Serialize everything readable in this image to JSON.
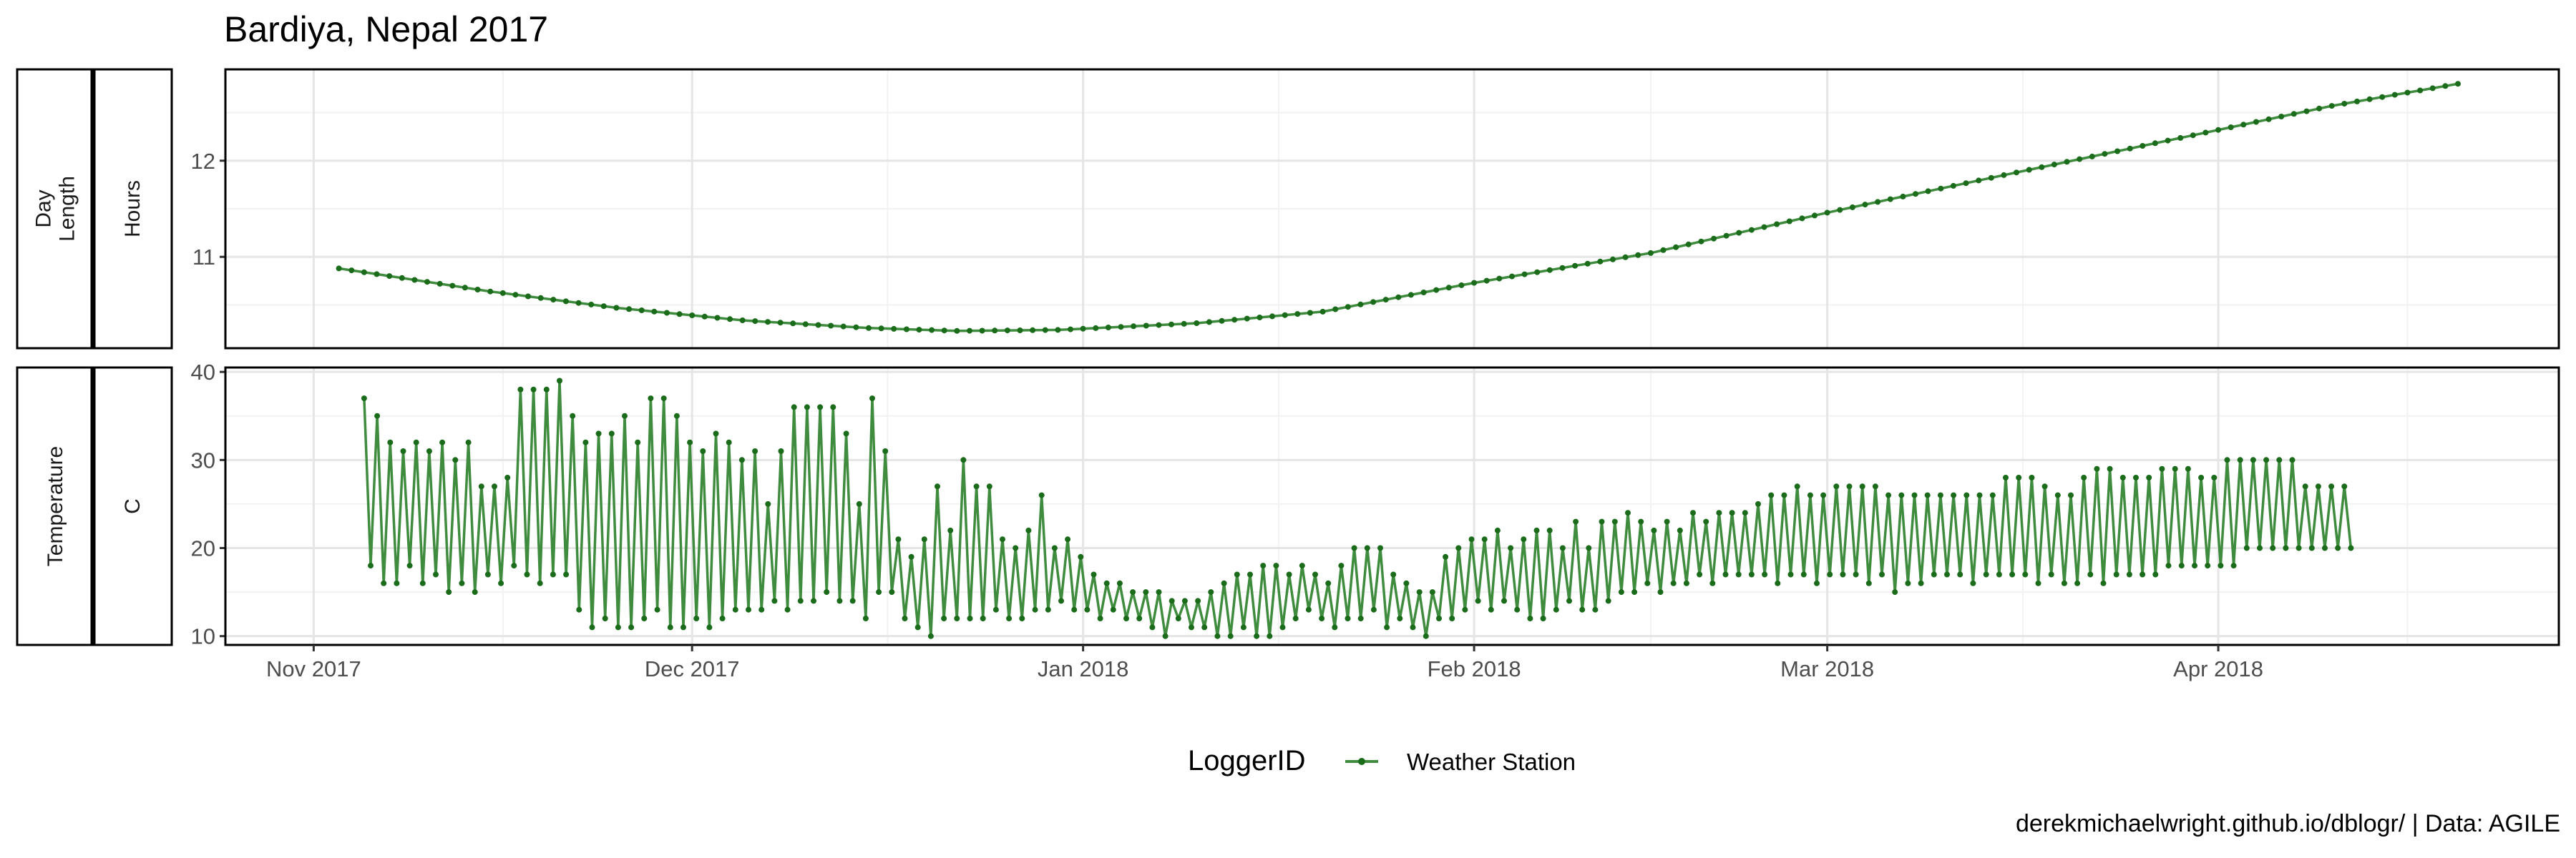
{
  "title": "Bardiya, Nepal 2017",
  "caption": "derekmichaelwright.github.io/dblogr/ | Data: AGILE",
  "legend": {
    "title": "LoggerID",
    "entry": "Weather Station",
    "position": "bottom"
  },
  "style": {
    "line_color": "#3f8c3f",
    "point_color": "#1a6b1a",
    "grid_major": "#e5e5e5",
    "grid_minor": "#f2f2f2",
    "panel_border": "#000000",
    "strip_fill": "#ffffff",
    "tick_text": "#4d4d4d"
  },
  "x_axis": {
    "ticks": [
      "2017-11-01",
      "2017-12-01",
      "2018-01-01",
      "2018-02-01",
      "2018-03-01",
      "2018-04-01"
    ],
    "tick_labels": [
      "Nov 2017",
      "Dec 2017",
      "Jan 2018",
      "Feb 2018",
      "Mar 2018",
      "Apr 2018"
    ],
    "range": [
      "2017-10-25",
      "2018-04-28"
    ]
  },
  "chart_data": [
    {
      "type": "line",
      "facet": [
        "Day Length",
        "Hours"
      ],
      "series": [
        {
          "name": "Weather Station",
          "start": "2017-11-03",
          "end": "2018-04-20",
          "step_days": 1,
          "knots": [
            [
              "2017-11-03",
              10.88
            ],
            [
              "2017-11-15",
              10.64
            ],
            [
              "2017-11-25",
              10.47
            ],
            [
              "2017-12-05",
              10.34
            ],
            [
              "2017-12-15",
              10.26
            ],
            [
              "2017-12-22",
              10.23
            ],
            [
              "2017-12-30",
              10.24
            ],
            [
              "2018-01-10",
              10.31
            ],
            [
              "2018-01-20",
              10.43
            ],
            [
              "2018-02-01",
              10.73
            ],
            [
              "2018-02-15",
              11.04
            ],
            [
              "2018-03-01",
              11.46
            ],
            [
              "2018-03-15",
              11.85
            ],
            [
              "2018-04-01",
              12.32
            ],
            [
              "2018-04-10",
              12.57
            ],
            [
              "2018-04-20",
              12.8
            ]
          ]
        }
      ],
      "y_ticks": [
        11,
        12
      ],
      "ylim": [
        10.05,
        12.95
      ],
      "grid": true
    },
    {
      "type": "line",
      "facet": [
        "Temperature",
        "C"
      ],
      "series": [
        {
          "name": "Weather Station",
          "start": "2017-11-05",
          "end": "2018-04-11",
          "pattern": "daily max then min",
          "max_values": [
            37,
            35,
            32,
            31,
            32,
            31,
            32,
            30,
            32,
            27,
            27,
            28,
            38,
            38,
            38,
            39,
            35,
            32,
            33,
            33,
            35,
            32,
            37,
            37,
            35,
            32,
            31,
            33,
            32,
            30,
            31,
            25,
            31,
            36,
            36,
            36,
            36,
            33,
            25,
            37,
            31,
            21,
            19,
            21,
            27,
            22,
            30,
            27,
            27,
            21,
            20,
            22,
            26,
            20,
            21,
            19,
            17,
            16,
            16,
            15,
            15,
            15,
            14,
            14,
            14,
            15,
            16,
            17,
            17,
            18,
            18,
            17,
            18,
            17,
            16,
            18,
            20,
            20,
            20,
            17,
            16,
            15,
            15,
            19,
            20,
            21,
            21,
            22,
            20,
            21,
            22,
            22,
            20,
            23,
            20,
            23,
            23,
            24,
            23,
            22,
            23,
            22,
            24,
            23,
            24,
            24,
            24,
            25,
            26,
            26,
            27,
            26,
            26,
            27,
            27,
            27,
            27,
            26,
            26,
            26,
            26,
            26,
            26,
            26,
            26,
            26,
            28,
            28,
            28,
            27,
            26,
            26,
            28,
            29,
            29,
            28,
            28,
            28,
            29,
            29,
            29,
            28,
            28,
            30,
            30,
            30,
            30,
            30,
            30,
            27,
            27,
            27,
            27
          ],
          "min_values": [
            18,
            16,
            16,
            18,
            16,
            17,
            15,
            16,
            15,
            17,
            16,
            18,
            17,
            16,
            17,
            17,
            13,
            11,
            12,
            11,
            11,
            12,
            13,
            11,
            11,
            12,
            11,
            12,
            13,
            13,
            13,
            14,
            13,
            14,
            14,
            15,
            14,
            14,
            12,
            15,
            15,
            12,
            11,
            10,
            12,
            12,
            12,
            12,
            13,
            12,
            12,
            13,
            13,
            14,
            13,
            13,
            12,
            13,
            12,
            12,
            11,
            10,
            12,
            11,
            11,
            10,
            10,
            11,
            10,
            10,
            11,
            12,
            13,
            12,
            11,
            12,
            12,
            13,
            11,
            12,
            11,
            10,
            12,
            12,
            13,
            14,
            13,
            14,
            13,
            12,
            12,
            13,
            14,
            13,
            13,
            14,
            15,
            15,
            16,
            15,
            16,
            16,
            17,
            16,
            17,
            17,
            17,
            17,
            16,
            17,
            17,
            16,
            17,
            17,
            17,
            16,
            17,
            15,
            16,
            16,
            17,
            17,
            17,
            16,
            17,
            17,
            17,
            17,
            16,
            17,
            16,
            16,
            17,
            16,
            17,
            17,
            17,
            17,
            18,
            18,
            18,
            18,
            18,
            18,
            20,
            20,
            20,
            20,
            20,
            20,
            20,
            20,
            20
          ]
        }
      ],
      "y_ticks": [
        10,
        20,
        30,
        40
      ],
      "ylim": [
        9,
        40.5
      ],
      "grid": true
    }
  ]
}
